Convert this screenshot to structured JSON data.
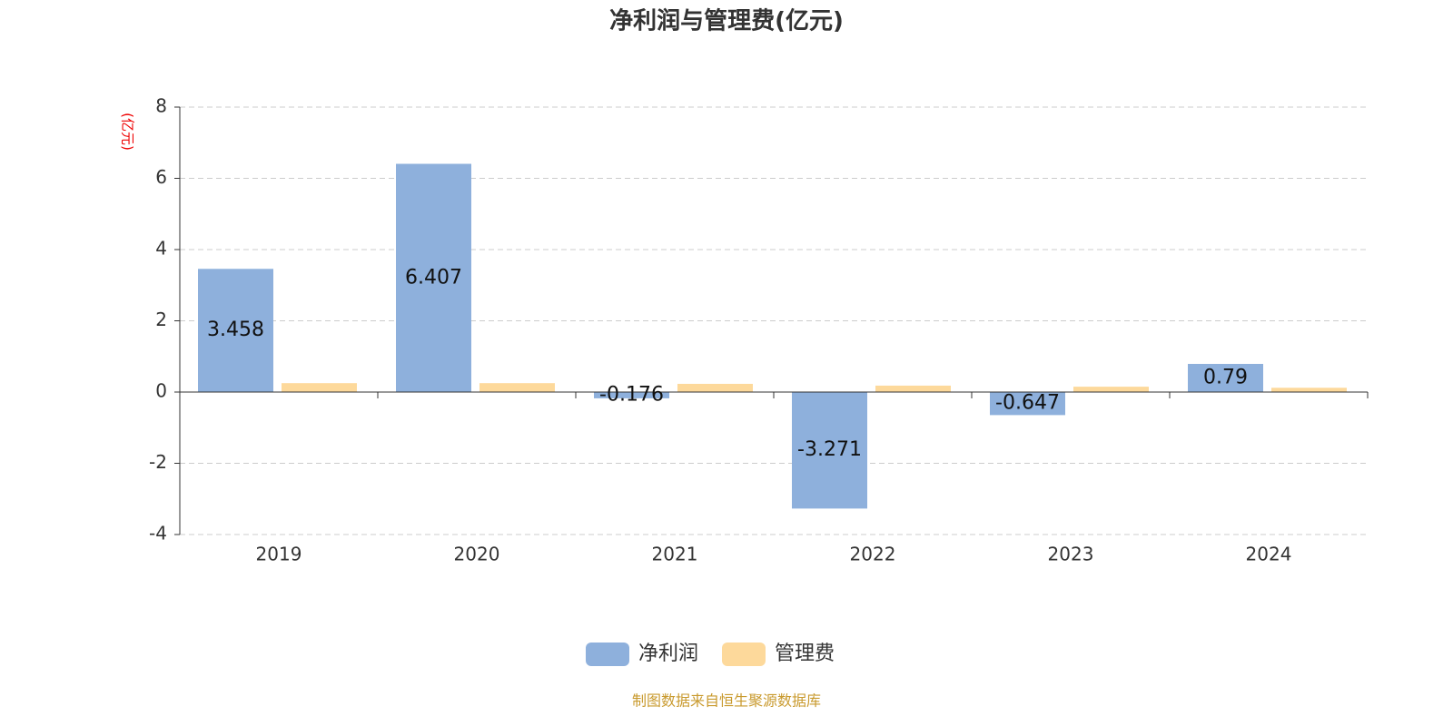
{
  "chart_data": {
    "type": "bar",
    "title": "净利润与管理费(亿元)",
    "y_label": "(亿元)",
    "categories": [
      "2019",
      "2020",
      "2021",
      "2022",
      "2023",
      "2024"
    ],
    "series": [
      {
        "name": "净利润",
        "color": "#8eb0dc",
        "values": [
          3.458,
          6.407,
          -0.176,
          -3.271,
          -0.647,
          0.79
        ]
      },
      {
        "name": "管理费",
        "color": "#fdd99b",
        "values": [
          0.25,
          0.25,
          0.23,
          0.18,
          0.15,
          0.12
        ]
      }
    ],
    "ylim": [
      -4,
      8
    ],
    "yticks": [
      -4,
      -2,
      0,
      2,
      4,
      6,
      8
    ],
    "grid": true,
    "source": "制图数据来自恒生聚源数据库"
  }
}
